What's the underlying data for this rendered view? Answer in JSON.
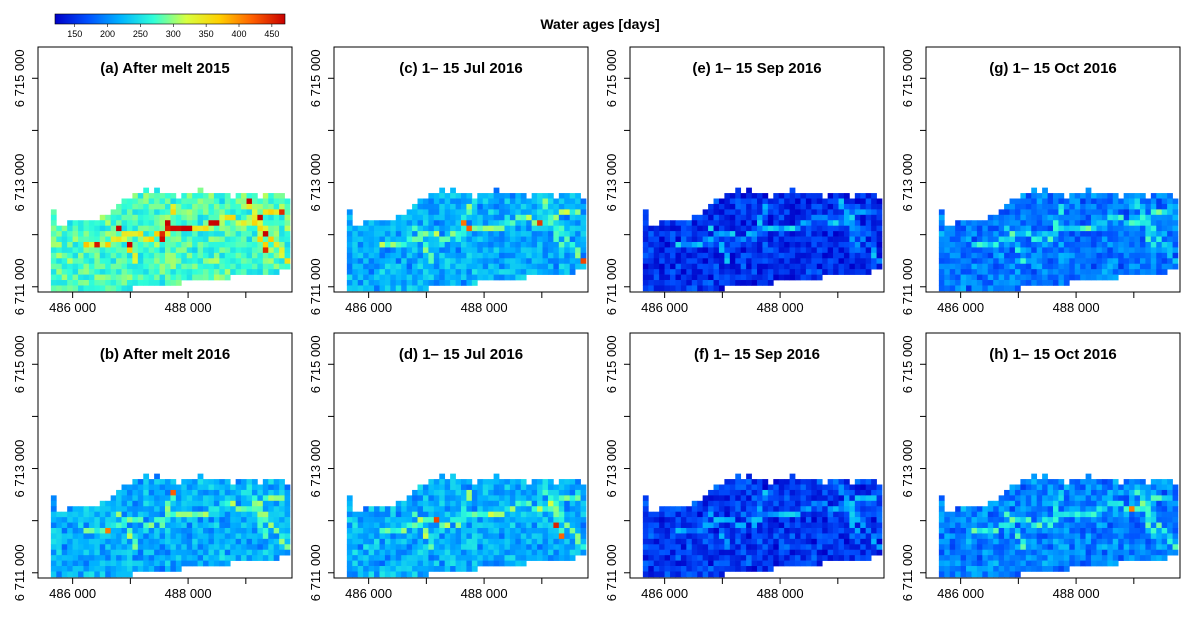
{
  "chart_data": {
    "type": "heatmap",
    "title": "Water ages [days]",
    "colorbar": {
      "ticks": [
        "150",
        "200",
        "250",
        "300",
        "350",
        "400",
        "450"
      ],
      "range": [
        120,
        470
      ],
      "colors": [
        "#0000c8",
        "#0050ff",
        "#00b4ff",
        "#30ffd8",
        "#d8ff40",
        "#ffd000",
        "#ff6000",
        "#c80000"
      ]
    },
    "x_ticks": [
      "486 000",
      "488 000"
    ],
    "y_ticks": [
      "6 711 000",
      "6 713 000",
      "6 715 000"
    ],
    "xlim": [
      485400,
      489800
    ],
    "ylim": [
      6710900,
      6715600
    ],
    "panels": [
      {
        "label": "(a) After melt 2015",
        "base_age": 275,
        "channel_boost": 55,
        "hotspots": 10
      },
      {
        "label": "(c) 1– 15 Jul 2016",
        "base_age": 218,
        "channel_boost": 55,
        "hotspots": 2
      },
      {
        "label": "(e) 1– 15 Sep 2016",
        "base_age": 150,
        "channel_boost": 55,
        "hotspots": 0
      },
      {
        "label": "(g)  1– 15 Oct 2016",
        "base_age": 190,
        "channel_boost": 50,
        "hotspots": 0
      },
      {
        "label": "(b) After melt 2016",
        "base_age": 218,
        "channel_boost": 55,
        "hotspots": 2
      },
      {
        "label": "(d)  1– 15 Jul 2016",
        "base_age": 218,
        "channel_boost": 55,
        "hotspots": 2
      },
      {
        "label": "(f)  1– 15 Sep 2016",
        "base_age": 155,
        "channel_boost": 50,
        "hotspots": 0
      },
      {
        "label": "(h)  1– 15 Oct 2016",
        "base_age": 195,
        "channel_boost": 55,
        "hotspots": 1
      }
    ]
  }
}
